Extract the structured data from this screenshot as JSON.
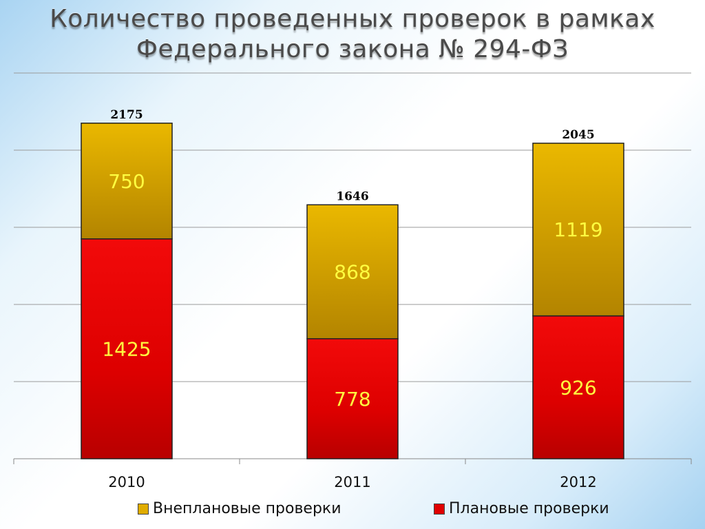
{
  "title": {
    "line1": "Количество проведенных проверок в рамках",
    "line2": "Федерального закона № 294-ФЗ"
  },
  "colors": {
    "planned": "#e00000",
    "unplanned": "#e0ac00"
  },
  "chart_data": {
    "type": "bar",
    "stacked": true,
    "categories": [
      "2010",
      "2011",
      "2012"
    ],
    "series": [
      {
        "name": "Плановые проверки",
        "values": [
          1425,
          778,
          926
        ]
      },
      {
        "name": "Внеплановые проверки",
        "values": [
          750,
          868,
          1119
        ]
      }
    ],
    "totals": [
      "2175",
      "1646",
      "2045"
    ],
    "ylim": [
      0,
      2500
    ],
    "grid": true,
    "legend_position": "bottom"
  }
}
